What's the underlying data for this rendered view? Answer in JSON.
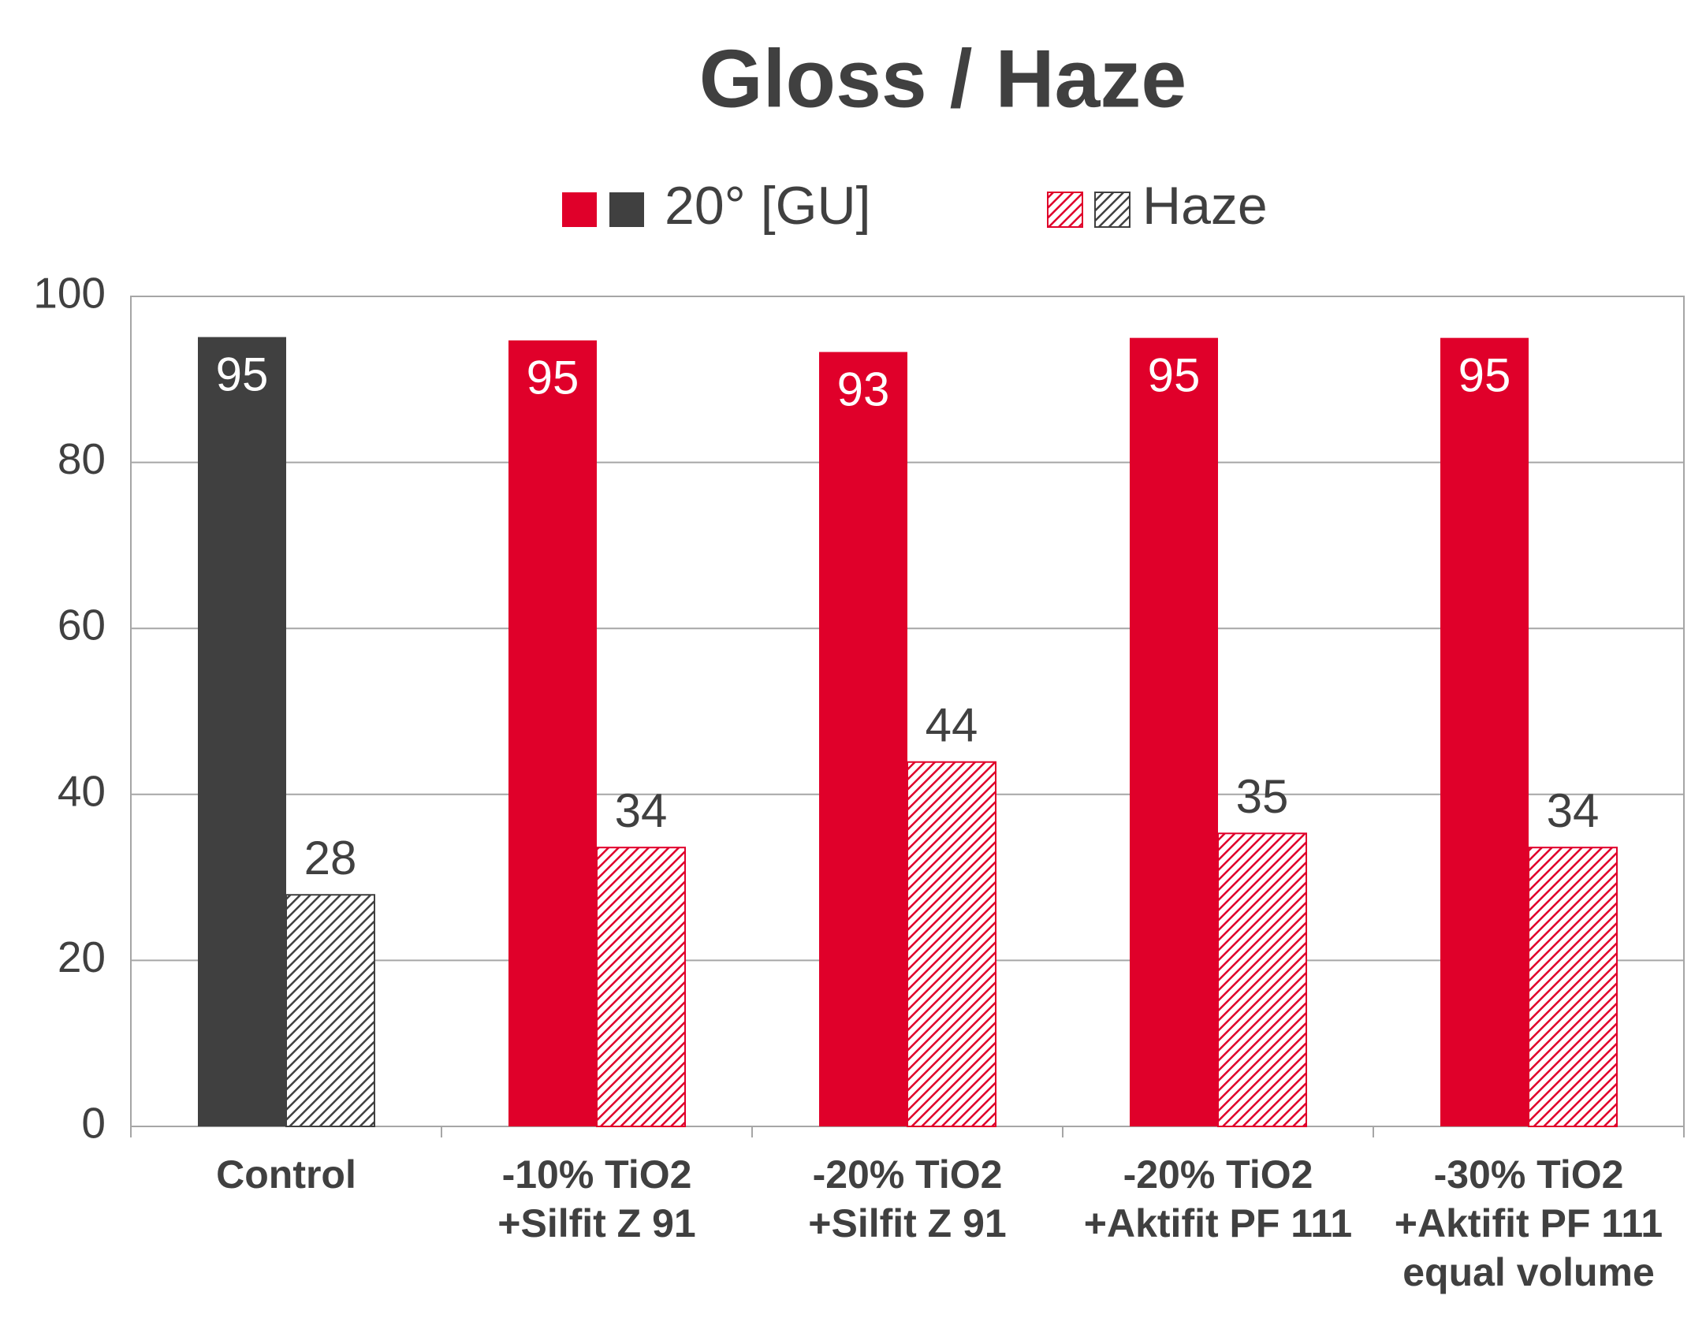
{
  "chart_data": {
    "type": "bar",
    "title": "Gloss / Haze",
    "categories": [
      [
        "Control"
      ],
      [
        "-10% TiO2",
        "+Silfit Z 91"
      ],
      [
        "-20% TiO2",
        "+Silfit Z 91"
      ],
      [
        "-20% TiO2",
        "+Aktifit PF 111"
      ],
      [
        "-30% TiO2",
        "+Aktifit PF 111",
        "equal volume"
      ]
    ],
    "series": [
      {
        "name": "20° [GU]",
        "colors": [
          "#404040",
          "#e0002a",
          "#e0002a",
          "#e0002a",
          "#e0002a"
        ],
        "pattern": "solid",
        "values": [
          95.1,
          94.7,
          93.3,
          95,
          95
        ],
        "value_labels": [
          "95",
          "95",
          "93",
          "95",
          "95"
        ]
      },
      {
        "name": "Haze",
        "colors": [
          "#404040",
          "#e0002a",
          "#e0002a",
          "#e0002a",
          "#e0002a"
        ],
        "pattern": "hatch",
        "values": [
          27.9,
          33.6,
          43.9,
          35.3,
          33.6
        ],
        "value_labels": [
          "28",
          "34",
          "44",
          "35",
          "34"
        ]
      }
    ],
    "ylim": [
      0,
      100
    ],
    "yticks": [
      0,
      20,
      40,
      60,
      80,
      100
    ],
    "grid": true
  }
}
